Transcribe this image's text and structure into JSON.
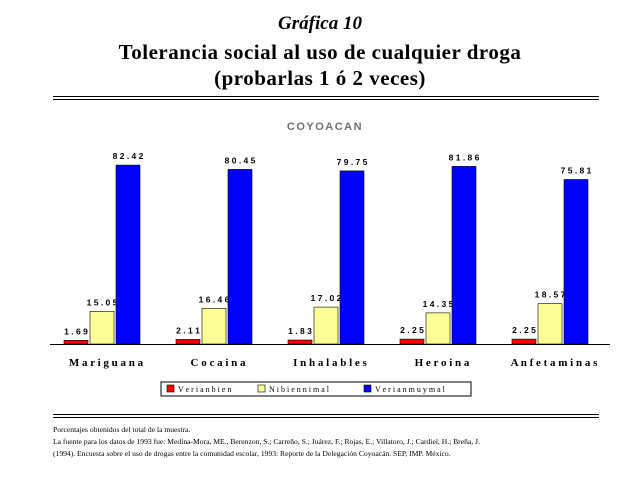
{
  "header": {
    "kicker": "Gráfica 10",
    "title_line1": "Tolerancia social al uso de cualquier droga",
    "title_line2": "(probarlas 1 ó 2 veces)"
  },
  "chart_data": {
    "type": "bar",
    "title": "COYOACAN",
    "categories": [
      "M a r i g u a n a",
      "C o c a i n a",
      "I n h a l a b l e s",
      "H e r o i n a",
      "A n f e t a m i n a s"
    ],
    "series": [
      {
        "name": "V e r i a n   b i e n",
        "color": "#ff0000",
        "values": [
          1.69,
          2.11,
          1.83,
          2.25,
          2.25
        ],
        "labels": [
          "1 . 6 9",
          "2 . 1 1",
          "1 . 8 3",
          "2 . 2 5",
          "2 . 2 5"
        ]
      },
      {
        "name": "N i  b i e n  n i  m a l",
        "color": "#ffff99",
        "values": [
          15.05,
          16.46,
          17.02,
          14.35,
          18.57
        ],
        "labels": [
          "1 5 . 0 5",
          "1 6 . 4 6",
          "1 7 . 0 2",
          "1 4 . 3 5",
          "1 8 . 5 7"
        ]
      },
      {
        "name": "V e r i a n   m u y   m a l",
        "color": "#0000ff",
        "values": [
          82.42,
          80.45,
          79.75,
          81.86,
          75.81
        ],
        "labels": [
          "8 2 . 4 2",
          "8 0 . 4 5",
          "7 9 . 7 5",
          "8 1 . 8 6",
          "7 5 . 8 1"
        ]
      }
    ],
    "ylim": [
      0,
      100
    ],
    "grid": false,
    "legend_position": "bottom"
  },
  "notes": {
    "line1": "Porcentajes obtenidos del total de la muestra.",
    "line2": "La fuente para los datos de 1993 fue: Medina-Mora, ME., Berenzon, S.; Carreño, S.; Juárez, F.; Rojas, E.; Villatoro, J.; Cardiel, H.; Breña, J.",
    "line3": "(1994). Encuesta sobre el uso de drogas entre la comunidad escolar, 1993: Reporte de la Delegación Coyoacán. SEP, IMP. México."
  }
}
